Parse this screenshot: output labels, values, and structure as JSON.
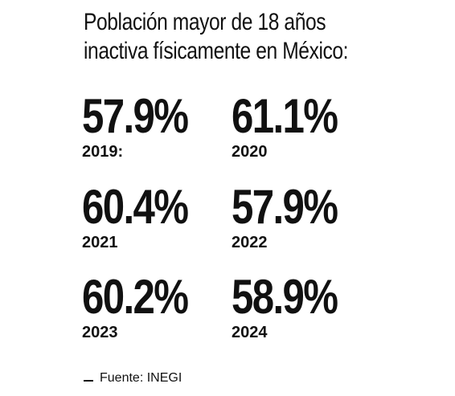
{
  "title": {
    "line1": "Población mayor de 18 años",
    "line2": "inactiva físicamente en México:"
  },
  "stats": [
    {
      "value": "57.9%",
      "year": "2019:"
    },
    {
      "value": "61.1%",
      "year": "2020"
    },
    {
      "value": "60.4%",
      "year": "2021"
    },
    {
      "value": "57.9%",
      "year": "2022"
    },
    {
      "value": "60.2%",
      "year": "2023"
    },
    {
      "value": "58.9%",
      "year": "2024"
    }
  ],
  "source": "Fuente: INEGI"
}
